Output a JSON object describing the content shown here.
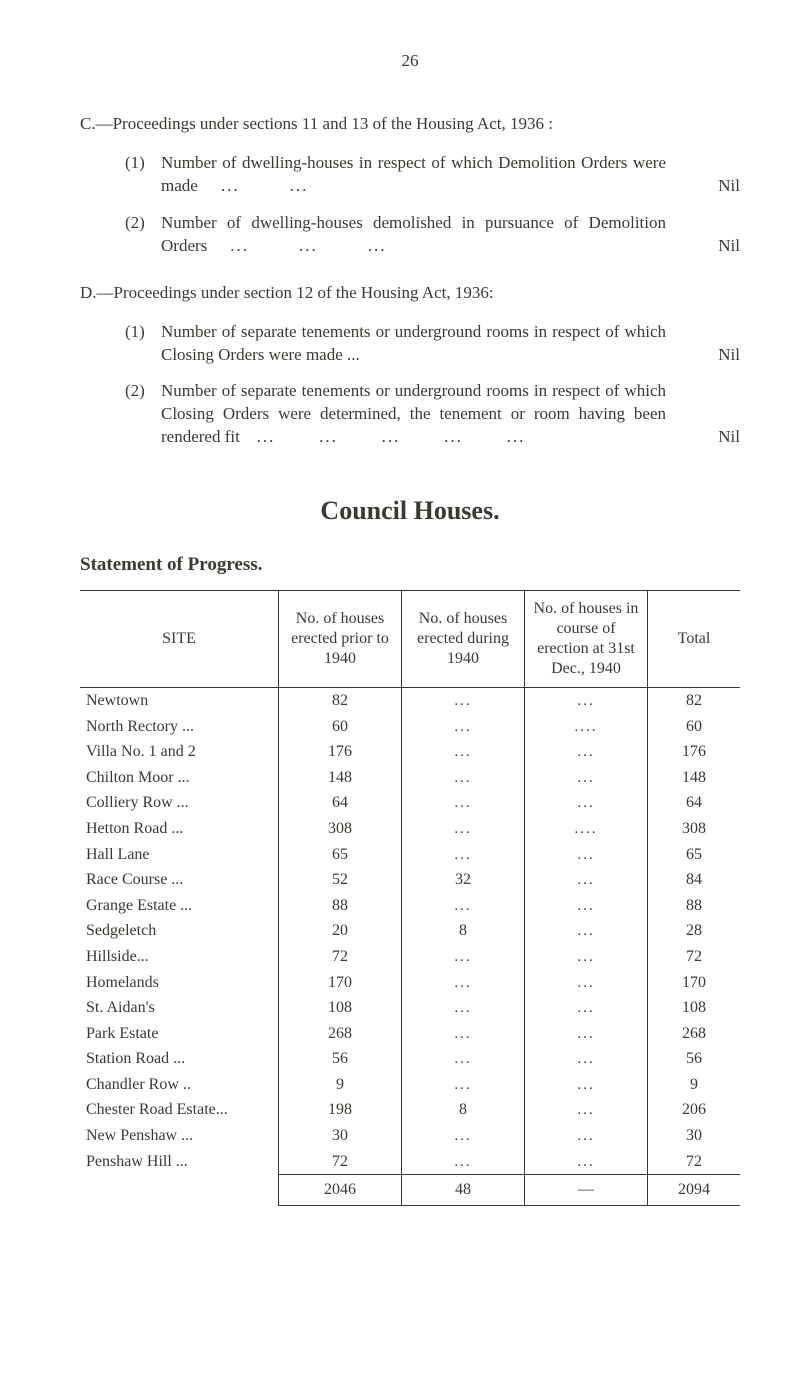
{
  "page_number": "26",
  "section_c": {
    "intro": "C.—Proceedings under sections 11 and 13 of the Housing Act, 1936 :",
    "items": [
      {
        "num": "(1)",
        "text": "Number of dwelling-houses in respect of which Demolition Orders were made",
        "value": "Nil"
      },
      {
        "num": "(2)",
        "text": "Number of dwelling-houses demolished in pursuance of Demolition Orders",
        "value": "Nil"
      }
    ]
  },
  "section_d": {
    "intro": "D.—Proceedings under section 12 of the Housing Act, 1936:",
    "items": [
      {
        "num": "(1)",
        "text": "Number of separate tenements or underground rooms in respect of which Closing Orders were made   ...",
        "value": "Nil"
      },
      {
        "num": "(2)",
        "text": "Number of separate tenements or underground rooms in respect of which Closing Orders were deter­mined, the tenement or room having been rendered fit",
        "value": "Nil"
      }
    ]
  },
  "council_heading": "Council Houses.",
  "statement_heading": "Statement of Progress.",
  "table": {
    "headers": {
      "site": "SITE",
      "c1": "No. of houses erected prior to 1940",
      "c2": "No. of houses erected during 1940",
      "c3": "No. of houses in course of erection at 31st Dec., 1940",
      "c4": "Total"
    },
    "rows": [
      {
        "site": "Newtown",
        "c1": "82",
        "c2": "...",
        "c3": "...",
        "c4": "82"
      },
      {
        "site": "North Rectory ...",
        "c1": "60",
        "c2": "...",
        "c3": "....",
        "c4": "60"
      },
      {
        "site": "Villa No. 1 and 2",
        "c1": "176",
        "c2": "...",
        "c3": "...",
        "c4": "176"
      },
      {
        "site": "Chilton Moor ...",
        "c1": "148",
        "c2": "...",
        "c3": "...",
        "c4": "148"
      },
      {
        "site": "Colliery Row  ...",
        "c1": "64",
        "c2": "...",
        "c3": "...",
        "c4": "64"
      },
      {
        "site": "Hetton Road  ...",
        "c1": "308",
        "c2": "...",
        "c3": "....",
        "c4": "308"
      },
      {
        "site": "Hall Lane",
        "c1": "65",
        "c2": "...",
        "c3": "...",
        "c4": "65"
      },
      {
        "site": "Race Course  ...",
        "c1": "52",
        "c2": "32",
        "c3": "...",
        "c4": "84"
      },
      {
        "site": "Grange Estate ...",
        "c1": "88",
        "c2": "...",
        "c3": "...",
        "c4": "88"
      },
      {
        "site": "Sedgeletch",
        "c1": "20",
        "c2": "8",
        "c3": "...",
        "c4": "28"
      },
      {
        "site": "Hillside...",
        "c1": "72",
        "c2": "...",
        "c3": "...",
        "c4": "72"
      },
      {
        "site": "Homelands",
        "c1": "170",
        "c2": "...",
        "c3": "...",
        "c4": "170"
      },
      {
        "site": "St. Aidan's",
        "c1": "108",
        "c2": "...",
        "c3": "...",
        "c4": "108"
      },
      {
        "site": "Park Estate",
        "c1": "268",
        "c2": "...",
        "c3": "...",
        "c4": "268"
      },
      {
        "site": "Station Road ...",
        "c1": "56",
        "c2": "...",
        "c3": "...",
        "c4": "56"
      },
      {
        "site": "Chandler Row ..",
        "c1": "9",
        "c2": "...",
        "c3": "...",
        "c4": "9"
      },
      {
        "site": "Chester Road Estate...",
        "c1": "198",
        "c2": "8",
        "c3": "...",
        "c4": "206"
      },
      {
        "site": "New Penshaw ...",
        "c1": "30",
        "c2": "...",
        "c3": "...",
        "c4": "30"
      },
      {
        "site": "Penshaw Hill ...",
        "c1": "72",
        "c2": "...",
        "c3": "...",
        "c4": "72"
      }
    ],
    "totals": {
      "c1": "2046",
      "c2": "48",
      "c3": "—",
      "c4": "2094"
    }
  }
}
